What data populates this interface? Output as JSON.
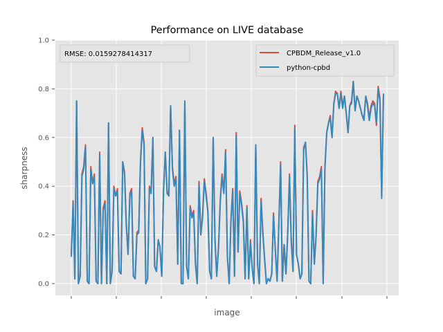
{
  "chart_data": {
    "type": "line",
    "title": "Performance on LIVE database",
    "xlabel": "image",
    "ylabel": "sharpness",
    "ylim": [
      0.0,
      1.0
    ],
    "yticks": [
      "0.0",
      "0.2",
      "0.4",
      "0.6",
      "0.8",
      "1.0"
    ],
    "xticks_labeled": false,
    "grid": true,
    "legend_position": "upper right",
    "annotation": "RMSE: 0.0159278414317",
    "series": [
      {
        "name": "CPBDM_Release_v1.0",
        "color": "#E24A33",
        "values": [
          0.12,
          0.34,
          0.02,
          0.75,
          0.0,
          0.03,
          0.45,
          0.48,
          0.57,
          0.01,
          0.0,
          0.48,
          0.41,
          0.45,
          0.01,
          0.0,
          0.54,
          0.0,
          0.31,
          0.34,
          0.0,
          0.66,
          0.0,
          0.05,
          0.4,
          0.36,
          0.39,
          0.05,
          0.04,
          0.5,
          0.46,
          0.25,
          0.12,
          0.37,
          0.39,
          0.03,
          0.02,
          0.21,
          0.22,
          0.5,
          0.64,
          0.58,
          0.0,
          0.02,
          0.4,
          0.38,
          0.6,
          0.07,
          0.05,
          0.18,
          0.15,
          0.03,
          0.39,
          0.54,
          0.38,
          0.36,
          0.73,
          0.48,
          0.41,
          0.44,
          0.08,
          0.63,
          0.0,
          0.0,
          0.75,
          0.07,
          0.02,
          0.32,
          0.28,
          0.3,
          0.08,
          0.0,
          0.42,
          0.2,
          0.28,
          0.43,
          0.37,
          0.3,
          0.05,
          0.02,
          0.6,
          0.18,
          0.03,
          0.15,
          0.35,
          0.45,
          0.38,
          0.55,
          0.11,
          0.0,
          0.26,
          0.39,
          0.03,
          0.62,
          0.13,
          0.38,
          0.33,
          0.26,
          0.02,
          0.32,
          0.02,
          0.18,
          0.06,
          0.0,
          0.57,
          0.08,
          0.0,
          0.35,
          0.21,
          0.1,
          0.0,
          0.02,
          0.01,
          0.04,
          0.29,
          0.14,
          0.01,
          0.24,
          0.5,
          0.01,
          0.16,
          0.04,
          0.2,
          0.45,
          0.18,
          0.05,
          0.65,
          0.12,
          0.08,
          0.02,
          0.04,
          0.56,
          0.58,
          0.45,
          0.01,
          0.0,
          0.3,
          0.08,
          0.2,
          0.42,
          0.44,
          0.48,
          0.0,
          0.48,
          0.62,
          0.66,
          0.69,
          0.6,
          0.74,
          0.79,
          0.78,
          0.72,
          0.79,
          0.73,
          0.77,
          0.7,
          0.62,
          0.73,
          0.75,
          0.83,
          0.71,
          0.77,
          0.75,
          0.72,
          0.69,
          0.68,
          0.77,
          0.74,
          0.68,
          0.73,
          0.75,
          0.74,
          0.65,
          0.81,
          0.76,
          0.36,
          0.78
        ]
      },
      {
        "name": "python-cpbd",
        "color": "#348ABD",
        "values": [
          0.11,
          0.33,
          0.02,
          0.75,
          0.0,
          0.03,
          0.44,
          0.47,
          0.56,
          0.01,
          0.0,
          0.47,
          0.41,
          0.44,
          0.01,
          0.0,
          0.53,
          0.0,
          0.3,
          0.33,
          0.0,
          0.66,
          0.0,
          0.05,
          0.39,
          0.36,
          0.38,
          0.05,
          0.04,
          0.5,
          0.45,
          0.24,
          0.12,
          0.36,
          0.38,
          0.03,
          0.02,
          0.2,
          0.21,
          0.49,
          0.63,
          0.57,
          0.0,
          0.02,
          0.39,
          0.37,
          0.6,
          0.07,
          0.05,
          0.18,
          0.15,
          0.03,
          0.38,
          0.54,
          0.37,
          0.36,
          0.73,
          0.47,
          0.4,
          0.43,
          0.08,
          0.63,
          0.0,
          0.0,
          0.75,
          0.07,
          0.02,
          0.31,
          0.27,
          0.29,
          0.08,
          0.0,
          0.41,
          0.2,
          0.27,
          0.42,
          0.36,
          0.29,
          0.05,
          0.02,
          0.6,
          0.18,
          0.03,
          0.15,
          0.34,
          0.44,
          0.37,
          0.54,
          0.11,
          0.0,
          0.25,
          0.38,
          0.03,
          0.61,
          0.13,
          0.37,
          0.32,
          0.25,
          0.02,
          0.31,
          0.02,
          0.17,
          0.06,
          0.0,
          0.57,
          0.08,
          0.0,
          0.34,
          0.2,
          0.1,
          0.0,
          0.02,
          0.01,
          0.04,
          0.28,
          0.14,
          0.01,
          0.24,
          0.49,
          0.01,
          0.16,
          0.04,
          0.2,
          0.44,
          0.17,
          0.05,
          0.64,
          0.12,
          0.08,
          0.02,
          0.04,
          0.55,
          0.58,
          0.44,
          0.01,
          0.0,
          0.29,
          0.08,
          0.19,
          0.41,
          0.43,
          0.47,
          0.0,
          0.47,
          0.62,
          0.66,
          0.68,
          0.6,
          0.74,
          0.78,
          0.78,
          0.72,
          0.78,
          0.72,
          0.77,
          0.7,
          0.62,
          0.73,
          0.74,
          0.83,
          0.71,
          0.77,
          0.75,
          0.72,
          0.69,
          0.67,
          0.77,
          0.73,
          0.67,
          0.72,
          0.74,
          0.73,
          0.66,
          0.8,
          0.75,
          0.35,
          0.78
        ]
      }
    ]
  },
  "plot": {
    "background": "#E5E5E5",
    "grid_color": "#FFFFFF",
    "tick_color": "#555555"
  }
}
